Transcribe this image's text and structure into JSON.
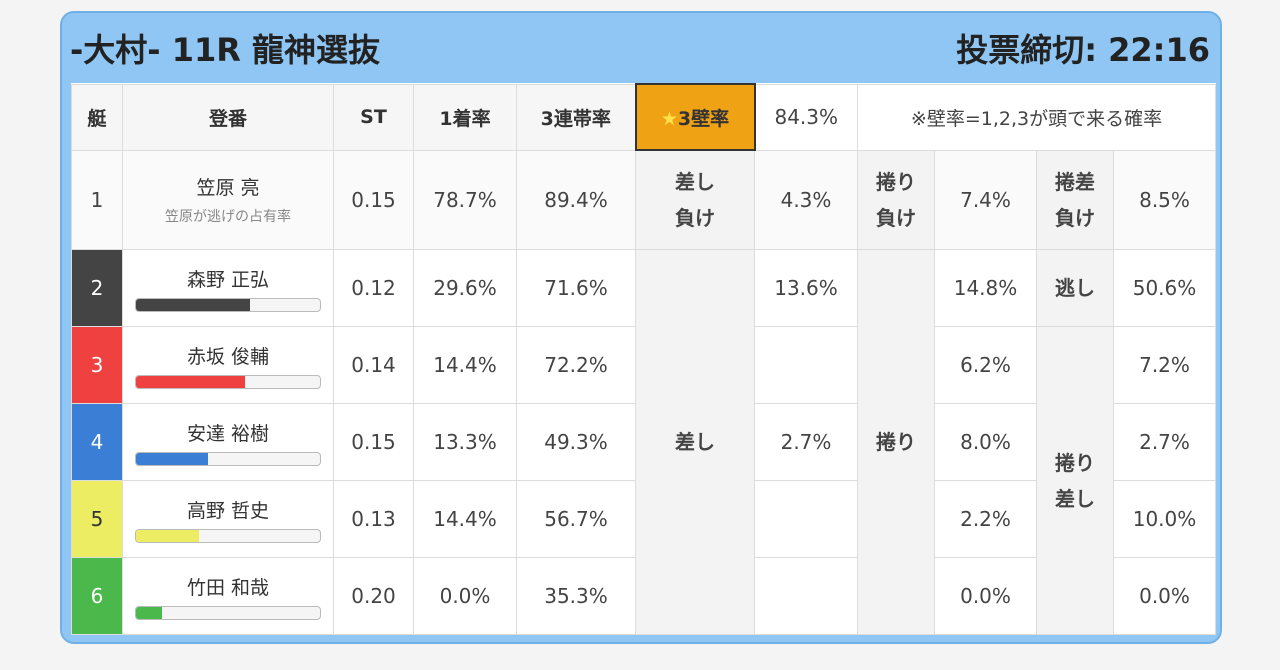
{
  "header": {
    "title": "-大村- 11R 龍神選抜",
    "deadline": "投票締切: 22:16"
  },
  "columns": {
    "boat": "艇",
    "racer": "登番",
    "st": "ST",
    "win": "1着率",
    "top3": "3連帯率",
    "wall_label": "3壁率",
    "wall_star": "★",
    "wall_value": "84.3%",
    "note": "※壁率=1,2,3が頭で来る確率"
  },
  "racers": [
    {
      "lane": "1",
      "name": "笠原 亮",
      "sub": "笠原が逃げの占有率",
      "st": "0.15",
      "win": "78.7%",
      "top3": "89.4%",
      "color": "#ffffff",
      "text_color": "#333333"
    },
    {
      "lane": "2",
      "name": "森野 正弘",
      "st": "0.12",
      "win": "29.6%",
      "top3": "71.6%",
      "color": "#444444",
      "text_color": "#ffffff",
      "bar": 0.62
    },
    {
      "lane": "3",
      "name": "赤坂 俊輔",
      "st": "0.14",
      "win": "14.4%",
      "top3": "72.2%",
      "color": "#f04141",
      "text_color": "#ffffff",
      "bar": 0.59
    },
    {
      "lane": "4",
      "name": "安達 裕樹",
      "st": "0.15",
      "win": "13.3%",
      "top3": "49.3%",
      "color": "#3a7fd5",
      "text_color": "#ffffff",
      "bar": 0.39
    },
    {
      "lane": "5",
      "name": "高野 哲史",
      "st": "0.13",
      "win": "14.4%",
      "top3": "56.7%",
      "color": "#eded63",
      "text_color": "#333333",
      "bar": 0.34
    },
    {
      "lane": "6",
      "name": "竹田 和哉",
      "st": "0.20",
      "win": "0.0%",
      "top3": "35.3%",
      "color": "#4ab84a",
      "text_color": "#ffffff",
      "bar": 0.14
    }
  ],
  "stats": {
    "r1": {
      "sashi_make": "差し\n負け",
      "sashi_make_v": "4.3%",
      "makuri_make": "捲り\n負け",
      "makuri_make_v": "7.4%",
      "makurisashi_make": "捲差\n負け",
      "makurisashi_make_v": "8.5%"
    },
    "sashi": "差し",
    "sashi_v2": "13.6%",
    "sashi_v4": "2.7%",
    "makuri": "捲り",
    "makuri_v2": "14.8%",
    "makuri_v3": "6.2%",
    "makuri_v4": "8.0%",
    "makuri_v5": "2.2%",
    "makuri_v6": "0.0%",
    "nige": "逃し",
    "nige_v": "50.6%",
    "makurisashi": "捲り\n差し",
    "makurisashi_v3": "7.2%",
    "makurisashi_v4": "2.7%",
    "makurisashi_v5": "10.0%",
    "makurisashi_v6": "0.0%"
  }
}
